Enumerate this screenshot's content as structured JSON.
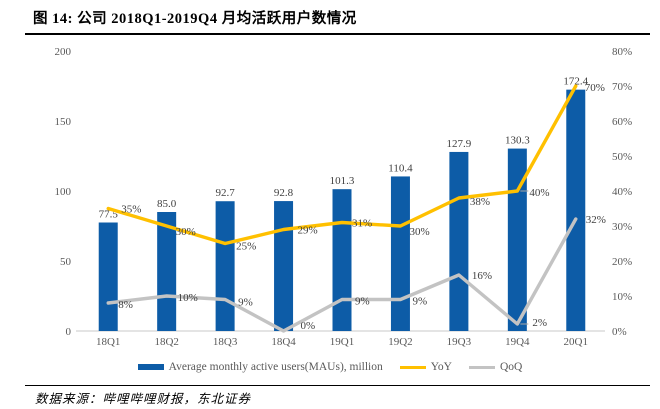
{
  "header": {
    "title": "图 14: 公司 2018Q1-2019Q4 月均活跃用户数情况"
  },
  "footer": {
    "source": "数据来源：哔哩哔哩财报，东北证券"
  },
  "chart_data": {
    "type": "bar",
    "subtype": "combo-bar-line-dual-axis",
    "categories": [
      "18Q1",
      "18Q2",
      "18Q3",
      "18Q4",
      "19Q1",
      "19Q2",
      "19Q3",
      "19Q4",
      "20Q1"
    ],
    "series": [
      {
        "name": "Average monthly active users(MAUs), million",
        "kind": "bar",
        "axis": "left",
        "color": "#0D5CA7",
        "values": [
          77.5,
          85.0,
          92.7,
          92.8,
          101.3,
          110.4,
          127.9,
          130.3,
          172.4
        ],
        "labels": [
          "77.5",
          "85.0",
          "92.7",
          "92.8",
          "101.3",
          "110.4",
          "127.9",
          "130.3",
          "172.4"
        ]
      },
      {
        "name": "YoY",
        "kind": "line",
        "axis": "right",
        "color": "#FFC000",
        "values": [
          35,
          30,
          25,
          29,
          31,
          30,
          38,
          40,
          70
        ],
        "labels": [
          "35%",
          "30%",
          "25%",
          "29%",
          "31%",
          "30%",
          "38%",
          "40%",
          "70%"
        ]
      },
      {
        "name": "QoQ",
        "kind": "line",
        "axis": "right",
        "color": "#C3C3C3",
        "values": [
          8,
          10,
          9,
          0,
          9,
          9,
          16,
          2,
          32
        ],
        "labels": [
          "8%",
          "10%",
          "9%",
          "0%",
          "9%",
          "9%",
          "16%",
          "2%",
          "32%"
        ]
      }
    ],
    "left_axis": {
      "ticks": [
        "0",
        "50",
        "100",
        "150",
        "200"
      ],
      "min": 0,
      "max": 200
    },
    "right_axis": {
      "ticks": [
        "0%",
        "10%",
        "20%",
        "30%",
        "40%",
        "50%",
        "60%",
        "70%",
        "80%"
      ],
      "min": 0,
      "max": 80
    },
    "grid": false,
    "legend_position": "bottom",
    "colors": {
      "axis_line": "#C9C9C9",
      "tick_label": "#595959",
      "data_label": "#404040"
    }
  }
}
